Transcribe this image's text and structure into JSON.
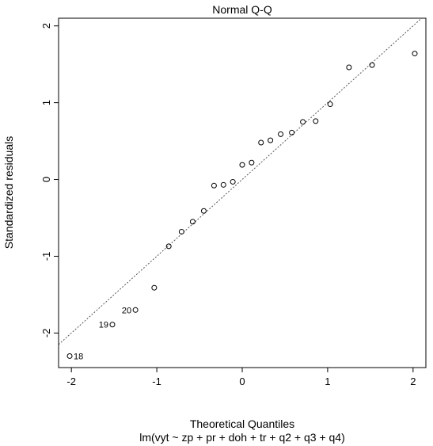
{
  "chart_data": {
    "type": "scatter",
    "title": "Normal Q-Q",
    "xlabel": "Theoretical Quantiles",
    "ylabel": "Standardized residuals",
    "subtitle": "lm(vyt ~ zp + pr + doh + tr + q2 + q3 + q4)",
    "xlim": [
      -2.15,
      2.15
    ],
    "ylim": [
      -2.45,
      2.1
    ],
    "x_ticks": [
      -2,
      -1,
      0,
      1,
      2
    ],
    "y_ticks": [
      -2,
      -1,
      0,
      1,
      2
    ],
    "reference_line": {
      "type": "dotted",
      "slope": 1.0,
      "intercept": 0.0
    },
    "points": [
      {
        "x": -2.02,
        "y": -2.3,
        "label": "18"
      },
      {
        "x": -1.52,
        "y": -1.89,
        "label": "19"
      },
      {
        "x": -1.25,
        "y": -1.7,
        "label": "20"
      },
      {
        "x": -1.03,
        "y": -1.41,
        "label": ""
      },
      {
        "x": -0.86,
        "y": -0.87,
        "label": ""
      },
      {
        "x": -0.71,
        "y": -0.68,
        "label": ""
      },
      {
        "x": -0.58,
        "y": -0.55,
        "label": ""
      },
      {
        "x": -0.45,
        "y": -0.41,
        "label": ""
      },
      {
        "x": -0.33,
        "y": -0.08,
        "label": ""
      },
      {
        "x": -0.22,
        "y": -0.07,
        "label": ""
      },
      {
        "x": -0.11,
        "y": -0.03,
        "label": ""
      },
      {
        "x": 0.0,
        "y": 0.19,
        "label": ""
      },
      {
        "x": 0.11,
        "y": 0.22,
        "label": ""
      },
      {
        "x": 0.22,
        "y": 0.48,
        "label": ""
      },
      {
        "x": 0.33,
        "y": 0.51,
        "label": ""
      },
      {
        "x": 0.45,
        "y": 0.59,
        "label": ""
      },
      {
        "x": 0.58,
        "y": 0.61,
        "label": ""
      },
      {
        "x": 0.71,
        "y": 0.75,
        "label": ""
      },
      {
        "x": 0.86,
        "y": 0.76,
        "label": ""
      },
      {
        "x": 1.03,
        "y": 0.98,
        "label": ""
      },
      {
        "x": 1.25,
        "y": 1.46,
        "label": ""
      },
      {
        "x": 1.52,
        "y": 1.49,
        "label": ""
      },
      {
        "x": 2.02,
        "y": 1.64,
        "label": ""
      }
    ]
  }
}
